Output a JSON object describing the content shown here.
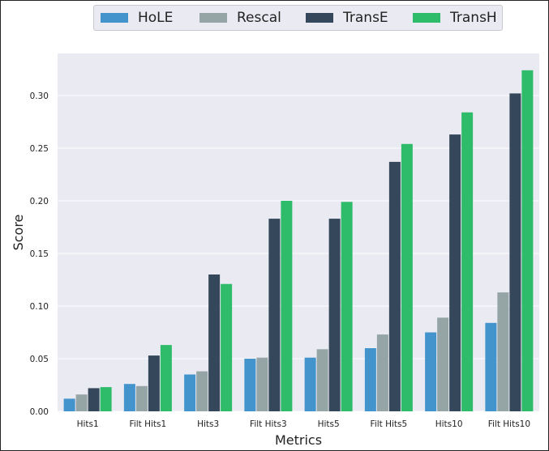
{
  "chart_data": {
    "type": "bar",
    "title": "",
    "xlabel": "Metrics",
    "ylabel": "Score",
    "ylim": [
      0,
      0.34
    ],
    "yticks": [
      "0.00",
      "0.05",
      "0.10",
      "0.15",
      "0.20",
      "0.25",
      "0.30"
    ],
    "grid": true,
    "legend_position": "top",
    "categories": [
      "Hits1",
      "Filt Hits1",
      "Hits3",
      "Filt Hits3",
      "Hits5",
      "Filt Hits5",
      "Hits10",
      "Filt Hits10"
    ],
    "series": [
      {
        "name": "HoLE",
        "color": "#4393cc",
        "values": [
          0.012,
          0.026,
          0.035,
          0.05,
          0.051,
          0.06,
          0.075,
          0.084
        ]
      },
      {
        "name": "Rescal",
        "color": "#95a5a6",
        "values": [
          0.016,
          0.024,
          0.038,
          0.051,
          0.059,
          0.073,
          0.089,
          0.113
        ]
      },
      {
        "name": "TransE",
        "color": "#35475a",
        "values": [
          0.022,
          0.053,
          0.13,
          0.183,
          0.183,
          0.237,
          0.263,
          0.302
        ]
      },
      {
        "name": "TransH",
        "color": "#2ebc6a",
        "values": [
          0.023,
          0.063,
          0.121,
          0.2,
          0.199,
          0.254,
          0.284,
          0.324
        ]
      }
    ]
  },
  "colors": {
    "plot_background": "#eaeaf2",
    "gridline": "#ffffff",
    "text": "#222222"
  }
}
